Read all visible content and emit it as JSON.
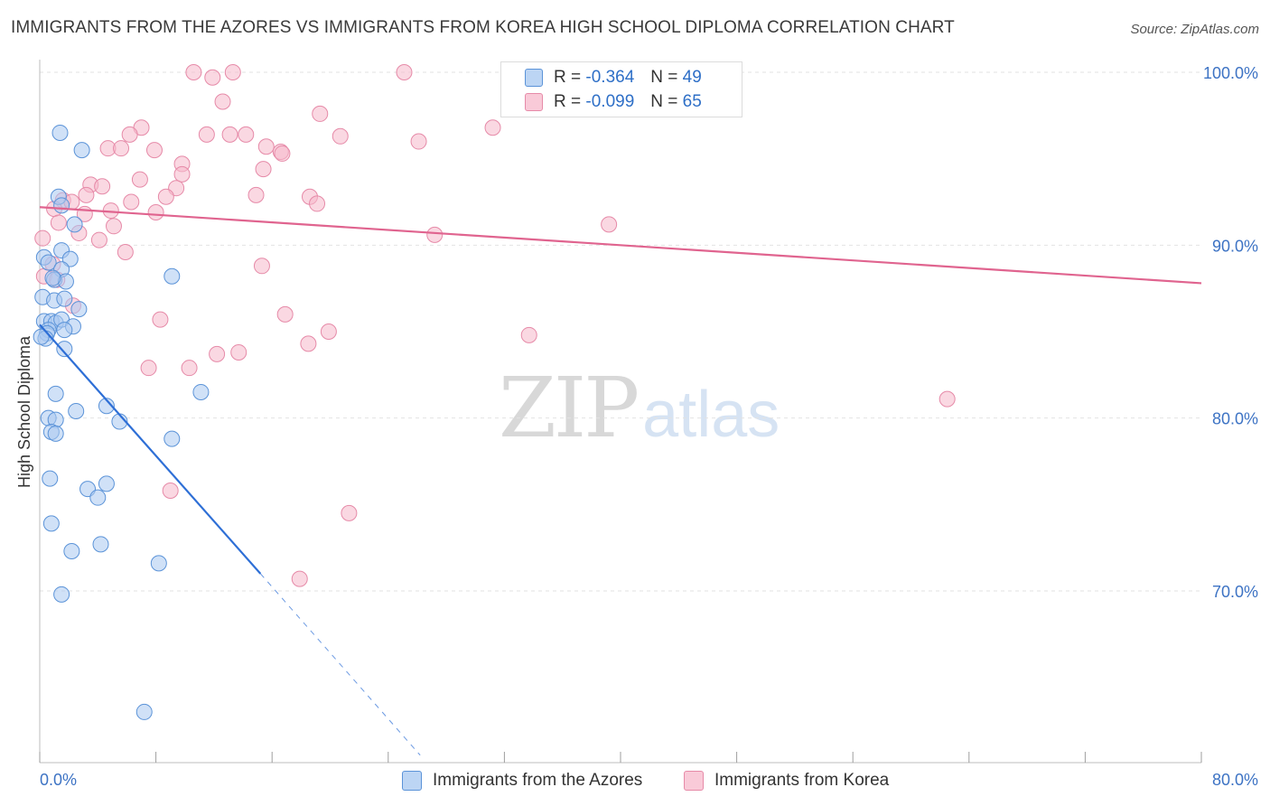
{
  "title": "IMMIGRANTS FROM THE AZORES VS IMMIGRANTS FROM KOREA HIGH SCHOOL DIPLOMA CORRELATION CHART",
  "source": "Source: ZipAtlas.com",
  "watermark": {
    "part1": "ZIP",
    "part2": "atlas"
  },
  "legend": {
    "rows": [
      {
        "r_label": "R =",
        "r_value": "-0.364",
        "n_label": "N =",
        "n_value": "49"
      },
      {
        "r_label": "R =",
        "r_value": "-0.099",
        "n_label": "N =",
        "n_value": "65"
      }
    ]
  },
  "colors": {
    "azores_fill": "#a9c9f0",
    "azores_stroke": "#5b93d8",
    "azores_line": "#2e6fd6",
    "korea_fill": "#f6b8cb",
    "korea_stroke": "#e68aa8",
    "korea_line": "#e0648f",
    "axis_label": "#3d73c4",
    "grid": "#e2e2e2"
  },
  "chart_data": {
    "type": "scatter",
    "title": "IMMIGRANTS FROM THE AZORES VS IMMIGRANTS FROM KOREA HIGH SCHOOL DIPLOMA CORRELATION CHART",
    "xlabel": "",
    "ylabel": "High School Diploma",
    "xlim": [
      0,
      80
    ],
    "ylim": [
      60,
      102
    ],
    "x_tick_labels": [
      "0.0%",
      "80.0%"
    ],
    "y_ticks": [
      70,
      80,
      90,
      100
    ],
    "y_tick_labels": [
      "70.0%",
      "80.0%",
      "90.0%",
      "100.0%"
    ],
    "grid": true,
    "legend_position": "bottom",
    "series": [
      {
        "name": "Immigrants from the Azores",
        "R": -0.364,
        "N": 49,
        "trend": {
          "x0": 0,
          "y0": 85.4,
          "x1": 15.2,
          "y1": 71.0,
          "dashed_to_x": 26.2,
          "dashed_to_y": 60.5
        },
        "points": [
          [
            1.4,
            96.5
          ],
          [
            2.9,
            95.5
          ],
          [
            1.3,
            92.8
          ],
          [
            1.5,
            92.3
          ],
          [
            2.4,
            91.2
          ],
          [
            1.5,
            89.7
          ],
          [
            0.3,
            89.3
          ],
          [
            0.6,
            89.0
          ],
          [
            2.1,
            89.2
          ],
          [
            1.5,
            88.6
          ],
          [
            1.0,
            88.0
          ],
          [
            1.8,
            87.9
          ],
          [
            9.1,
            88.2
          ],
          [
            0.2,
            87.0
          ],
          [
            1.0,
            86.8
          ],
          [
            1.7,
            86.9
          ],
          [
            2.7,
            86.3
          ],
          [
            0.3,
            85.6
          ],
          [
            0.8,
            85.6
          ],
          [
            1.1,
            85.5
          ],
          [
            1.5,
            85.7
          ],
          [
            0.6,
            85.1
          ],
          [
            2.3,
            85.3
          ],
          [
            1.7,
            85.1
          ],
          [
            0.5,
            84.9
          ],
          [
            0.4,
            84.6
          ],
          [
            1.7,
            84.0
          ],
          [
            11.1,
            81.5
          ],
          [
            1.1,
            81.4
          ],
          [
            4.6,
            80.7
          ],
          [
            2.5,
            80.4
          ],
          [
            0.6,
            80.0
          ],
          [
            1.1,
            79.9
          ],
          [
            5.5,
            79.8
          ],
          [
            0.8,
            79.2
          ],
          [
            1.1,
            79.1
          ],
          [
            9.1,
            78.8
          ],
          [
            0.7,
            76.5
          ],
          [
            3.3,
            75.9
          ],
          [
            4.6,
            76.2
          ],
          [
            4.0,
            75.4
          ],
          [
            0.8,
            73.9
          ],
          [
            2.2,
            72.3
          ],
          [
            4.2,
            72.7
          ],
          [
            8.2,
            71.6
          ],
          [
            1.5,
            69.8
          ],
          [
            7.2,
            63.0
          ],
          [
            0.1,
            84.7
          ],
          [
            0.9,
            88.1
          ]
        ]
      },
      {
        "name": "Immigrants from Korea",
        "R": -0.099,
        "N": 65,
        "trend": {
          "x0": 0,
          "y0": 92.2,
          "x1": 80,
          "y1": 87.8
        },
        "points": [
          [
            10.6,
            100.0
          ],
          [
            13.3,
            100.0
          ],
          [
            25.1,
            100.0
          ],
          [
            11.9,
            99.7
          ],
          [
            12.6,
            98.3
          ],
          [
            19.3,
            97.6
          ],
          [
            7.0,
            96.8
          ],
          [
            31.2,
            96.8
          ],
          [
            6.2,
            96.4
          ],
          [
            11.5,
            96.4
          ],
          [
            13.1,
            96.4
          ],
          [
            14.2,
            96.4
          ],
          [
            20.7,
            96.3
          ],
          [
            26.1,
            96.0
          ],
          [
            4.7,
            95.6
          ],
          [
            5.6,
            95.6
          ],
          [
            7.9,
            95.5
          ],
          [
            15.6,
            95.7
          ],
          [
            16.6,
            95.4
          ],
          [
            16.7,
            95.3
          ],
          [
            9.8,
            94.7
          ],
          [
            15.4,
            94.4
          ],
          [
            9.8,
            94.1
          ],
          [
            6.9,
            93.8
          ],
          [
            3.5,
            93.5
          ],
          [
            4.3,
            93.4
          ],
          [
            9.4,
            93.3
          ],
          [
            3.2,
            92.9
          ],
          [
            8.7,
            92.8
          ],
          [
            14.9,
            92.9
          ],
          [
            18.6,
            92.8
          ],
          [
            1.6,
            92.6
          ],
          [
            2.2,
            92.5
          ],
          [
            6.3,
            92.5
          ],
          [
            19.1,
            92.4
          ],
          [
            1.0,
            92.1
          ],
          [
            3.1,
            91.8
          ],
          [
            4.9,
            92.0
          ],
          [
            8.0,
            91.9
          ],
          [
            1.3,
            91.3
          ],
          [
            5.1,
            91.1
          ],
          [
            39.2,
            91.2
          ],
          [
            2.7,
            90.7
          ],
          [
            27.2,
            90.6
          ],
          [
            0.2,
            90.4
          ],
          [
            4.1,
            90.3
          ],
          [
            5.9,
            89.6
          ],
          [
            15.3,
            88.8
          ],
          [
            0.9,
            88.9
          ],
          [
            0.3,
            88.2
          ],
          [
            1.2,
            88.0
          ],
          [
            16.9,
            86.0
          ],
          [
            8.3,
            85.7
          ],
          [
            19.9,
            85.0
          ],
          [
            33.7,
            84.8
          ],
          [
            18.5,
            84.3
          ],
          [
            12.2,
            83.7
          ],
          [
            13.7,
            83.8
          ],
          [
            7.5,
            82.9
          ],
          [
            10.3,
            82.9
          ],
          [
            62.5,
            81.1
          ],
          [
            9.0,
            75.8
          ],
          [
            21.3,
            74.5
          ],
          [
            17.9,
            70.7
          ],
          [
            2.3,
            86.5
          ]
        ]
      }
    ]
  }
}
